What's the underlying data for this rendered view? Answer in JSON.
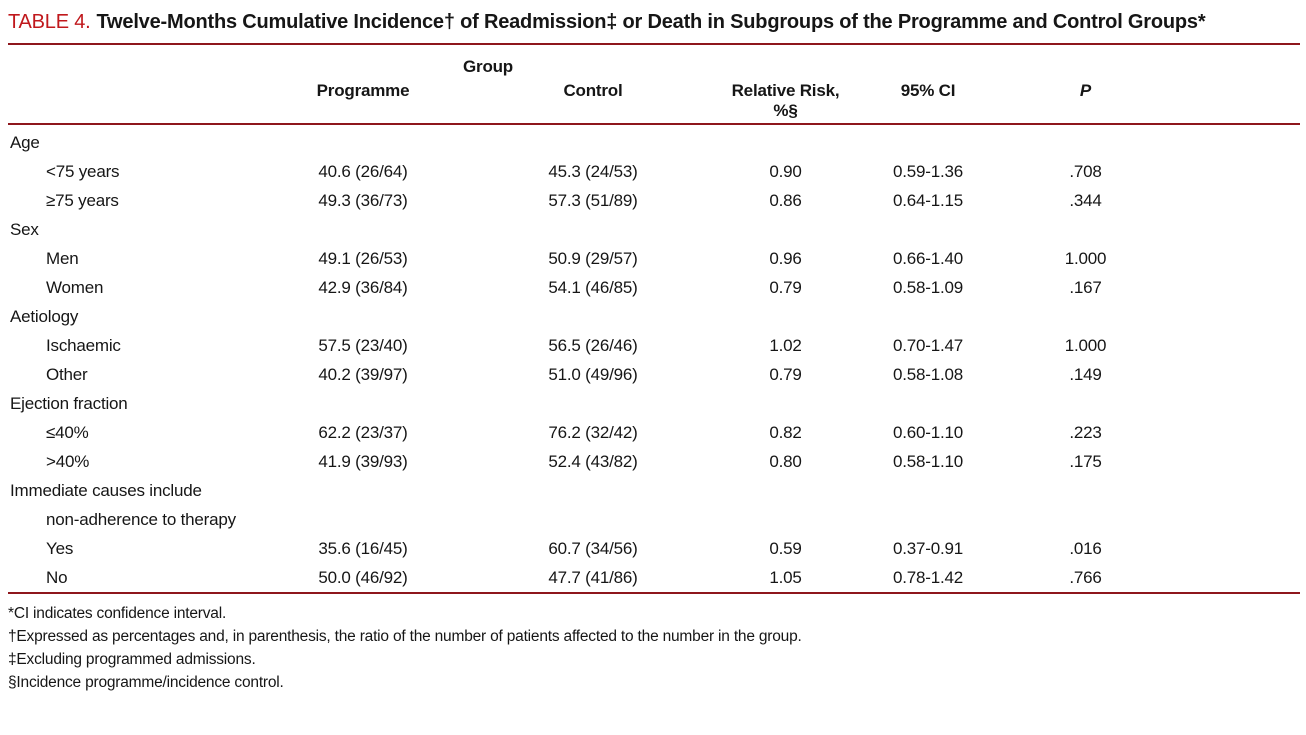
{
  "page": {
    "title_label": "TABLE 4.",
    "title_text": "Twelve-Months Cumulative Incidence† of Readmission‡ or Death in Subgroups of the Programme and Control Groups*"
  },
  "colors": {
    "title_label": "#c0181c",
    "rule": "#8e161c",
    "text": "#161616"
  },
  "table": {
    "header": {
      "group_span": "Group",
      "programme": "Programme",
      "control": "Control",
      "relative_risk": "Relative Risk, %§",
      "ci": "95% CI",
      "p": "P"
    },
    "rows": [
      {
        "label": "Age",
        "indent": false
      },
      {
        "label": "<75 years",
        "indent": true,
        "programme": "40.6 (26/64)",
        "control": "45.3 (24/53)",
        "rr": "0.90",
        "ci": "0.59-1.36",
        "p": ".708"
      },
      {
        "label": "≥75 years",
        "indent": true,
        "programme": "49.3 (36/73)",
        "control": "57.3 (51/89)",
        "rr": "0.86",
        "ci": "0.64-1.15",
        "p": ".344"
      },
      {
        "label": "Sex",
        "indent": false
      },
      {
        "label": "Men",
        "indent": true,
        "programme": "49.1 (26/53)",
        "control": "50.9 (29/57)",
        "rr": "0.96",
        "ci": "0.66-1.40",
        "p": "1.000"
      },
      {
        "label": "Women",
        "indent": true,
        "programme": "42.9 (36/84)",
        "control": "54.1 (46/85)",
        "rr": "0.79",
        "ci": "0.58-1.09",
        "p": ".167"
      },
      {
        "label": "Aetiology",
        "indent": false
      },
      {
        "label": "Ischaemic",
        "indent": true,
        "programme": "57.5 (23/40)",
        "control": "56.5 (26/46)",
        "rr": "1.02",
        "ci": "0.70-1.47",
        "p": "1.000"
      },
      {
        "label": "Other",
        "indent": true,
        "programme": "40.2 (39/97)",
        "control": "51.0 (49/96)",
        "rr": "0.79",
        "ci": "0.58-1.08",
        "p": ".149"
      },
      {
        "label": "Ejection fraction",
        "indent": false
      },
      {
        "label": "≤40%",
        "indent": true,
        "programme": "62.2 (23/37)",
        "control": "76.2 (32/42)",
        "rr": "0.82",
        "ci": "0.60-1.10",
        "p": ".223"
      },
      {
        "label": ">40%",
        "indent": true,
        "programme": "41.9 (39/93)",
        "control": "52.4 (43/82)",
        "rr": "0.80",
        "ci": "0.58-1.10",
        "p": ".175"
      },
      {
        "label": "Immediate causes include",
        "indent": false
      },
      {
        "label": "non-adherence to therapy",
        "indent": true
      },
      {
        "label": "Yes",
        "indent": true,
        "programme": "35.6 (16/45)",
        "control": "60.7 (34/56)",
        "rr": "0.59",
        "ci": "0.37-0.91",
        "p": ".016"
      },
      {
        "label": "No",
        "indent": true,
        "programme": "50.0 (46/92)",
        "control": "47.7 (41/86)",
        "rr": "1.05",
        "ci": "0.78-1.42",
        "p": ".766"
      }
    ]
  },
  "footnotes": [
    "*CI indicates confidence interval.",
    "†Expressed as percentages and, in parenthesis, the ratio of the number of patients affected to the number in the group.",
    "‡Excluding programmed admissions.",
    "§Incidence programme/incidence control."
  ]
}
